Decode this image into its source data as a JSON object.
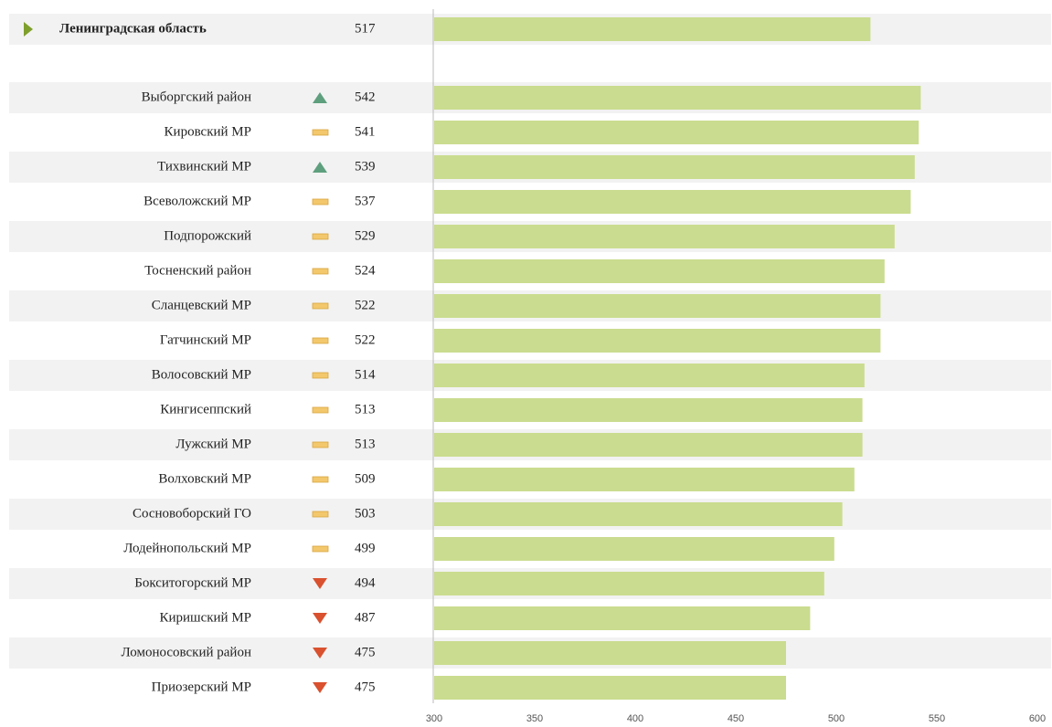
{
  "chart_data": {
    "type": "bar",
    "total": {
      "name": "Ленинградская область",
      "value": 517
    },
    "categories": [
      "Выборгский район",
      "Кировский МР",
      "Тихвинский МР",
      "Всеволожский  МР",
      "Подпорожский",
      "Тосненский район",
      "Сланцевский МР",
      "Гатчинский МР",
      "Волосовский МР",
      "Кингисеппский",
      "Лужский МР",
      "Волховский МР",
      "Сосновоборский ГО",
      "Лодейнопольский МР",
      "Бокситогорский МР",
      "Киришский МР",
      "Ломоносовский район",
      "Приозерский МР"
    ],
    "values": [
      542,
      541,
      539,
      537,
      529,
      524,
      522,
      522,
      514,
      513,
      513,
      509,
      503,
      499,
      494,
      487,
      475,
      475
    ],
    "trend": [
      "up",
      "flat",
      "up",
      "flat",
      "flat",
      "flat",
      "flat",
      "flat",
      "flat",
      "flat",
      "flat",
      "flat",
      "flat",
      "flat",
      "down",
      "down",
      "down",
      "down"
    ],
    "trend_colors": {
      "up": "#5e9f7e",
      "flat": "#f3c76c",
      "down": "#d9512f"
    },
    "color": "#cadc8f",
    "xlim": [
      300,
      600
    ],
    "xticks": [
      300,
      350,
      400,
      450,
      500,
      550,
      600
    ]
  }
}
